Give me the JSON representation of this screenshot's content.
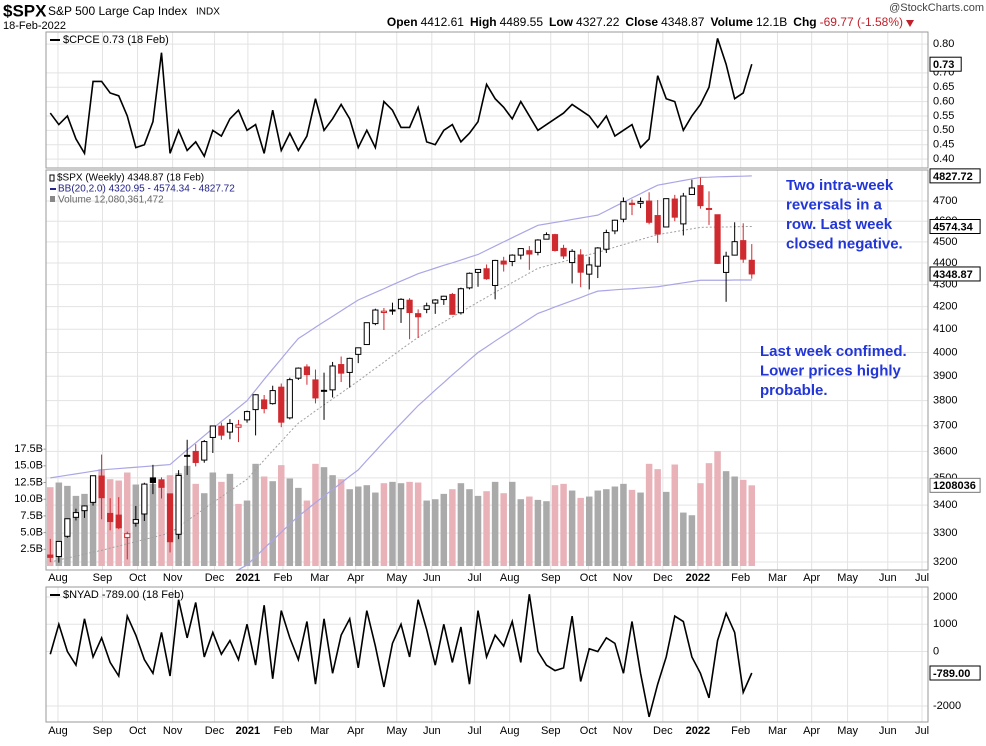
{
  "header": {
    "symbol": "$SPX",
    "name": "S&P 500 Large Cap Index",
    "exchange": "INDX",
    "date": "18-Feb-2022",
    "credit": "@StockCharts.com",
    "quote": [
      [
        "Open",
        "4412.61"
      ],
      [
        "High",
        "4489.55"
      ],
      [
        "Low",
        "4327.22"
      ],
      [
        "Close",
        "4348.87"
      ],
      [
        "Volume",
        "12.1B"
      ],
      [
        "Chg",
        "-69.77 (-1.58%)"
      ]
    ]
  },
  "chart_data": [
    {
      "type": "line",
      "ylim": [
        0.369,
        0.842
      ],
      "yticks": [
        {
          "value": 0.4,
          "label": "0.40"
        },
        0.45,
        {
          "value": 0.5,
          "label": "0.50"
        },
        0.55,
        {
          "value": 0.6,
          "label": "0.60"
        },
        0.65,
        {
          "value": 0.7,
          "label": "0.70"
        },
        {
          "value": 0.8,
          "label": "0.80"
        }
      ],
      "grid": true,
      "series": [
        {
          "name": "$CPCE 0.73 (18 Feb)",
          "color": "#000000",
          "last_label": "0.73",
          "values": [
            0.56,
            0.52,
            0.55,
            0.47,
            0.42,
            0.67,
            0.67,
            0.63,
            0.62,
            0.55,
            0.44,
            0.45,
            0.53,
            0.77,
            0.42,
            0.5,
            0.43,
            0.46,
            0.41,
            0.5,
            0.48,
            0.54,
            0.57,
            0.5,
            0.52,
            0.42,
            0.57,
            0.43,
            0.49,
            0.43,
            0.48,
            0.61,
            0.5,
            0.54,
            0.59,
            0.54,
            0.44,
            0.5,
            0.44,
            0.6,
            0.57,
            0.51,
            0.51,
            0.58,
            0.46,
            0.45,
            0.5,
            0.52,
            0.46,
            0.49,
            0.53,
            0.66,
            0.61,
            0.58,
            0.54,
            0.6,
            0.55,
            0.5,
            0.52,
            0.54,
            0.56,
            0.59,
            0.57,
            0.55,
            0.51,
            0.55,
            0.48,
            0.5,
            0.52,
            0.44,
            0.47,
            0.69,
            0.61,
            0.6,
            0.5,
            0.55,
            0.59,
            0.65,
            0.82,
            0.73,
            0.61,
            0.63,
            0.73
          ]
        }
      ]
    },
    {
      "type": "candlestick",
      "name": "$SPX (Weekly) 4348.87 (18 Feb)",
      "up_color": "#000000",
      "down_color": "#cf2a2f",
      "open": [
        3224,
        3219,
        3289,
        3356,
        3380,
        3410,
        3507,
        3370,
        3364,
        3285,
        3335,
        3368,
        3500,
        3493,
        3441,
        3296,
        3583,
        3600,
        3567,
        3654,
        3698,
        3675,
        3694,
        3723,
        3764,
        3803,
        3788,
        3855,
        3731,
        3892,
        3939,
        3885,
        3842,
        3844,
        3949,
        3916,
        3992,
        4034,
        4125,
        4174,
        4185,
        4191,
        4229,
        4169,
        4188,
        4216,
        4232,
        4255,
        4173,
        4285,
        4356,
        4373,
        4296,
        4409,
        4407,
        4437,
        4458,
        4450,
        4513,
        4535,
        4469,
        4402,
        4438,
        4348,
        4385,
        4465,
        4553,
        4610,
        4689,
        4689,
        4700,
        4628,
        4572,
        4710,
        4587,
        4733,
        4778,
        4661,
        4632,
        4356,
        4437,
        4506,
        4412.61
      ],
      "high": [
        3280,
        3272,
        3352,
        3387,
        3399,
        3509,
        3588,
        3425,
        3429,
        3305,
        3397,
        3482,
        3549,
        3502,
        3441,
        3529,
        3645,
        3628,
        3644,
        3699,
        3712,
        3726,
        3723,
        3760,
        3826,
        3823,
        3861,
        3870,
        3894,
        3937,
        3950,
        3928,
        3915,
        3960,
        3983,
        3978,
        4020,
        4130,
        4191,
        4194,
        4218,
        4238,
        4238,
        4188,
        4218,
        4234,
        4249,
        4262,
        4286,
        4356,
        4372,
        4393,
        4415,
        4429,
        4441,
        4468,
        4480,
        4513,
        4546,
        4539,
        4486,
        4465,
        4465,
        4429,
        4475,
        4559,
        4608,
        4718,
        4708,
        4718,
        4744,
        4705,
        4713,
        4731,
        4741,
        4808,
        4819,
        4749,
        4632,
        4453,
        4595,
        4590,
        4489.55
      ],
      "low": [
        3200,
        3198,
        3284,
        3345,
        3354,
        3398,
        3349,
        3310,
        3314,
        3209,
        3323,
        3343,
        3440,
        3424,
        3233,
        3279,
        3511,
        3543,
        3557,
        3594,
        3645,
        3647,
        3636,
        3712,
        3662,
        3749,
        3784,
        3694,
        3725,
        3885,
        3865,
        3789,
        3723,
        3813,
        3876,
        3853,
        3955,
        4034,
        4118,
        4097,
        4164,
        4128,
        4057,
        4062,
        4171,
        4168,
        4208,
        4165,
        4165,
        4278,
        4290,
        4322,
        4233,
        4360,
        4385,
        4417,
        4368,
        4436,
        4513,
        4454,
        4419,
        4305,
        4288,
        4278,
        4330,
        4447,
        4537,
        4595,
        4630,
        4665,
        4585,
        4495,
        4572,
        4600,
        4531,
        4733,
        4662,
        4582,
        4395,
        4222,
        4435,
        4401,
        4327.22
      ],
      "close": [
        3216,
        3271,
        3351,
        3373,
        3397,
        3508,
        3427,
        3341,
        3319,
        3298,
        3348,
        3477,
        3483,
        3465,
        3270,
        3509,
        3585,
        3558,
        3638,
        3699,
        3663,
        3709,
        3703,
        3756,
        3824,
        3768,
        3841,
        3714,
        3886,
        3934,
        3907,
        3811,
        3842,
        3943,
        3913,
        3975,
        4020,
        4129,
        4185,
        4180,
        4181,
        4233,
        4174,
        4155,
        4204,
        4230,
        4247,
        4166,
        4281,
        4352,
        4370,
        4327,
        4412,
        4395,
        4437,
        4468,
        4442,
        4509,
        4535,
        4459,
        4433,
        4455,
        4357,
        4391,
        4471,
        4545,
        4605,
        4697,
        4683,
        4698,
        4595,
        4538,
        4712,
        4620,
        4725,
        4766,
        4677,
        4663,
        4398,
        4432,
        4501,
        4418,
        4348.87
      ],
      "bands": {
        "name": "BB(20,2.0) 4320.95 - 4574.34 - 4827.72",
        "color": "#aaa6e6",
        "mid_color": "#a0a0a0",
        "upper": [
          3500,
          3505,
          3510,
          3515,
          3520,
          3525,
          3530,
          3532.5,
          3535,
          3537.5,
          3540,
          3542.5,
          3545,
          3547.5,
          3550,
          3578,
          3606,
          3633,
          3661,
          3689,
          3717,
          3744,
          3772,
          3800,
          3843,
          3887,
          3930,
          3973,
          4017,
          4060,
          4084,
          4109,
          4133,
          4157,
          4181,
          4206,
          4230,
          4247,
          4264,
          4281,
          4299,
          4316,
          4333,
          4350,
          4363,
          4376,
          4389,
          4401,
          4414,
          4427,
          4440,
          4460,
          4480,
          4500,
          4520,
          4540,
          4560,
          4580,
          4587,
          4594,
          4601,
          4609,
          4616,
          4623,
          4630,
          4651,
          4673,
          4694,
          4716,
          4737,
          4759,
          4780,
          4788,
          4796,
          4804,
          4812,
          4820,
          4821,
          4823,
          4824,
          4825,
          4826,
          4827.72
        ],
        "middle": [
          3200,
          3207,
          3214,
          3220,
          3227,
          3234,
          3240,
          3248,
          3255,
          3263,
          3270,
          3278,
          3285,
          3293,
          3300,
          3322,
          3344,
          3365,
          3387,
          3409,
          3430,
          3452,
          3473,
          3495,
          3531,
          3567,
          3603,
          3638,
          3675,
          3710,
          3734,
          3759,
          3783,
          3807,
          3831,
          3856,
          3880,
          3907,
          3933,
          3959,
          3986,
          4013,
          4039,
          4065,
          4087,
          4110,
          4132,
          4154,
          4176,
          4198,
          4220,
          4242,
          4265,
          4287,
          4309,
          4331,
          4353,
          4375,
          4386,
          4397,
          4407,
          4418,
          4429,
          4440,
          4450,
          4462,
          4475,
          4487,
          4499,
          4511,
          4523,
          4535,
          4542,
          4549,
          4556,
          4563,
          4570,
          4571,
          4572,
          4572,
          4573,
          4574,
          4574.34
        ],
        "lower": [
          2900,
          2908,
          2917,
          2925,
          2933,
          2942,
          2950,
          2963,
          2975,
          2988,
          3000,
          3013,
          3025,
          3038,
          3050,
          3066,
          3081,
          3097,
          3112,
          3128,
          3143,
          3159,
          3174,
          3190,
          3218,
          3247,
          3275,
          3303,
          3332,
          3360,
          3384,
          3409,
          3433,
          3457,
          3481,
          3506,
          3530,
          3566,
          3601,
          3637,
          3673,
          3709,
          3744,
          3780,
          3811,
          3843,
          3874,
          3906,
          3937,
          3969,
          4000,
          4024,
          4049,
          4073,
          4097,
          4121,
          4146,
          4170,
          4184,
          4199,
          4213,
          4227,
          4241,
          4256,
          4270,
          4273,
          4276,
          4279,
          4281,
          4284,
          4287,
          4290,
          4296,
          4302,
          4308,
          4314,
          4320,
          4320,
          4320,
          4320,
          4321,
          4321,
          4320.95
        ]
      },
      "volume": {
        "name": "Volume 12,080,361,472",
        "axis": "y2",
        "up_color": "#aaaaaa",
        "down_color": "#e8b2b8",
        "last_label": "1208036",
        "values": [
          11.8,
          12.5,
          12.0,
          10.5,
          10.8,
          12.9,
          14.5,
          13.0,
          12.8,
          14.0,
          12.2,
          11.8,
          12.3,
          12.5,
          13.6,
          13.9,
          15.0,
          12.3,
          10.9,
          14.0,
          12.6,
          13.8,
          9.3,
          9.8,
          15.3,
          13.4,
          12.7,
          15.1,
          13.1,
          11.7,
          9.8,
          15.3,
          14.8,
          13.6,
          13.0,
          11.5,
          11.9,
          12.1,
          11.0,
          12.4,
          12.6,
          12.4,
          12.6,
          12.5,
          9.8,
          10.0,
          10.8,
          11.5,
          12.4,
          11.5,
          10.5,
          11.2,
          12.6,
          10.9,
          12.6,
          10.0,
          10.4,
          9.9,
          9.7,
          12.1,
          12.3,
          11.3,
          10.2,
          10.4,
          11.3,
          11.5,
          11.9,
          12.3,
          11.4,
          11.0,
          15.3,
          14.5,
          11.1,
          15.2,
          8.0,
          7.6,
          12.4,
          15.4,
          17.2,
          14.2,
          13.4,
          12.9,
          12.08
        ]
      },
      "ylim": [
        3173,
        4858
      ],
      "log": true,
      "grid": true,
      "yticks": [
        3200,
        3300,
        3400,
        3500,
        3600,
        3700,
        3800,
        3900,
        4000,
        4100,
        4200,
        4300,
        4400,
        4500,
        4600,
        4700
      ],
      "y2lim": [
        -0.6,
        59.3
      ],
      "y2ticks": [
        {
          "value": 2.5,
          "label": "2.5B"
        },
        {
          "value": 5,
          "label": "5.0B"
        },
        {
          "value": 7.5,
          "label": "7.5B"
        },
        {
          "value": 10,
          "label": "10.0B"
        },
        {
          "value": 12.5,
          "label": "12.5B"
        },
        {
          "value": 15,
          "label": "15.0B"
        },
        {
          "value": 17.5,
          "label": "17.5B"
        }
      ],
      "last_labels": [
        {
          "value": 4827.72,
          "label": "4827.72"
        },
        {
          "value": 4574.34,
          "label": "4574.34"
        },
        {
          "value": 4348.87,
          "label": "4348.87"
        }
      ],
      "xlim": [
        -0.5,
        102.6
      ],
      "xticks": [
        {
          "value": 0.9,
          "label": "Aug"
        },
        {
          "value": 6.1,
          "label": "Sep"
        },
        {
          "value": 10.2,
          "label": "Oct"
        },
        {
          "value": 14.3,
          "label": "Nov"
        },
        {
          "value": 19.2,
          "label": "Dec"
        },
        {
          "value": 23.1,
          "label": "2021"
        },
        {
          "value": 27.2,
          "label": "Feb"
        },
        {
          "value": 31.5,
          "label": "Mar"
        },
        {
          "value": 35.7,
          "label": "Apr"
        },
        {
          "value": 40.5,
          "label": "May"
        },
        {
          "value": 44.6,
          "label": "Jun"
        },
        {
          "value": 49.6,
          "label": "Jul"
        },
        {
          "value": 53.7,
          "label": "Aug"
        },
        {
          "value": 58.5,
          "label": "Sep"
        },
        {
          "value": 62.9,
          "label": "Oct"
        },
        {
          "value": 66.9,
          "label": "Nov"
        },
        {
          "value": 71.6,
          "label": "Dec"
        },
        {
          "value": 75.7,
          "label": "2022"
        },
        {
          "value": 80.7,
          "label": "Feb"
        },
        {
          "value": 85,
          "label": "Mar"
        },
        {
          "value": 89,
          "label": "Apr"
        },
        {
          "value": 93.2,
          "label": "May"
        },
        {
          "value": 97.9,
          "label": "Jun"
        },
        {
          "value": 101.9,
          "label": "Jul"
        }
      ],
      "annotations": [
        {
          "color": "#2236d8",
          "lines": [
            "Two intra-week",
            "reversals in a",
            "row. Last week",
            "closed negative."
          ]
        },
        {
          "color": "#2236d8",
          "lines": [
            "Last week confimed.",
            "Lower prices highly",
            "probable."
          ]
        }
      ]
    },
    {
      "type": "line",
      "ylim": [
        -2587,
        2367
      ],
      "yticks": [
        -2000,
        0,
        1000,
        2000
      ],
      "grid": true,
      "series": [
        {
          "name": "$NYAD -789.00 (18 Feb)",
          "color": "#000000",
          "last_label": "-789.00",
          "values": [
            -100,
            1000,
            0,
            -500,
            1200,
            -200,
            500,
            -400,
            -900,
            1300,
            600,
            -300,
            -800,
            700,
            -900,
            1900,
            500,
            1800,
            -200,
            700,
            -100,
            400,
            -300,
            1000,
            -500,
            1700,
            -1000,
            1500,
            500,
            -300,
            1100,
            -1200,
            1200,
            -800,
            600,
            1200,
            -600,
            1500,
            200,
            -1300,
            300,
            1000,
            -200,
            1900,
            800,
            -500,
            1000,
            -400,
            900,
            -1200,
            1500,
            -200,
            600,
            200,
            1100,
            -400,
            2100,
            0,
            -500,
            -700,
            -600,
            1300,
            -1100,
            100,
            0,
            500,
            300,
            -800,
            1100,
            -800,
            -2400,
            -1200,
            -200,
            1300,
            1100,
            -200,
            -800,
            -1700,
            400,
            1400,
            700,
            -1500,
            -789
          ]
        }
      ]
    }
  ]
}
